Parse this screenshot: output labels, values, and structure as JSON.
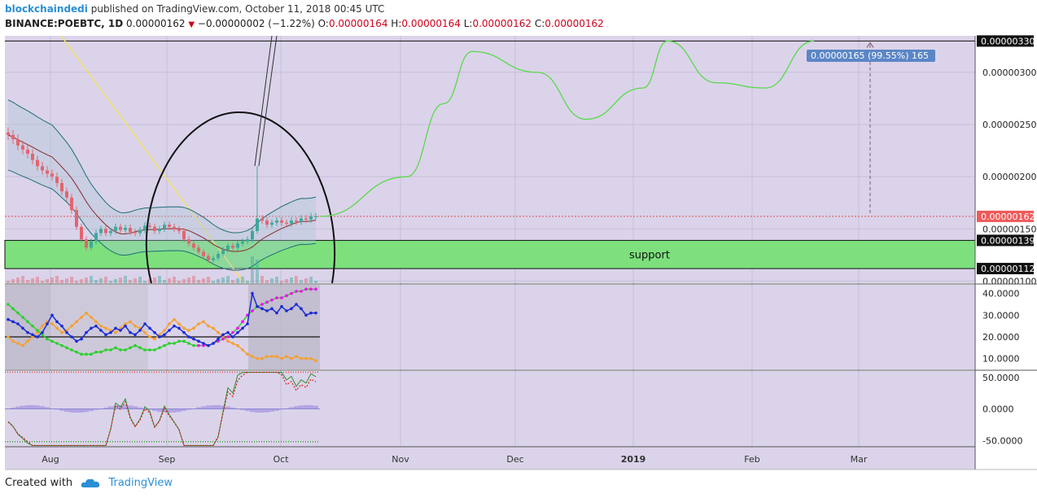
{
  "header": {
    "author": "blockchaindedi",
    "published_text": "published on TradingView.com, October 11, 2018 00:45 UTC",
    "symbol": "BINANCE:POEBTC, 1D",
    "last": "0.00000162",
    "change": "−0.00000002 (−1.22%)",
    "o_label": "O:",
    "o_value": "0.00000164",
    "h_label": "H:",
    "h_value": "0.00000164",
    "l_label": "L:",
    "l_value": "0.00000162",
    "c_label": "C:",
    "c_value": "0.00000162"
  },
  "footer": {
    "created_with": "Created with",
    "brand": "TradingView"
  },
  "colors": {
    "pane_bg": "#dbd3ea",
    "support_zone": "#7de07d",
    "candle_up": "#3fa89c",
    "candle_down": "#e3656e",
    "projection": "#59d94a",
    "circle": "#111111",
    "adx_line": "#1a2bd6",
    "plus_di": "#ff00ff",
    "minus_di": "#f5a030",
    "price_badge": "#f05a5a",
    "measure_badge": "#5b86c6"
  },
  "chart_data": {
    "type": "candlestick",
    "timeframe": "1D",
    "x_labels": [
      "Aug",
      "Sep",
      "Oct",
      "Nov",
      "Dec",
      "2019",
      "Feb",
      "Mar"
    ],
    "price_axis": {
      "ticks": [
        "0.00000300",
        "0.00000250",
        "0.00000200",
        "0.00000150",
        "0.00000100"
      ],
      "current_price": "0.00000162",
      "zone_top": "0.00000139",
      "zone_bottom": "0.00000112",
      "target": "0.00000330",
      "ylim": [
        9.8e-07,
        3.35e-06
      ]
    },
    "support_label": "support",
    "measure_label": "0.00000165 (99.55%) 165",
    "close_series": [
      2.4e-06,
      2.36e-06,
      2.3e-06,
      2.26e-06,
      2.22e-06,
      2.16e-06,
      2.1e-06,
      2.06e-06,
      2.03e-06,
      2e-06,
      1.94e-06,
      1.86e-06,
      1.8e-06,
      1.68e-06,
      1.52e-06,
      1.4e-06,
      1.32e-06,
      1.38e-06,
      1.46e-06,
      1.5e-06,
      1.46e-06,
      1.48e-06,
      1.52e-06,
      1.49e-06,
      1.51e-06,
      1.47e-06,
      1.46e-06,
      1.49e-06,
      1.53e-06,
      1.52e-06,
      1.48e-06,
      1.5e-06,
      1.54e-06,
      1.52e-06,
      1.5e-06,
      1.48e-06,
      1.4e-06,
      1.36e-06,
      1.32e-06,
      1.28e-06,
      1.24e-06,
      1.2e-06,
      1.22e-06,
      1.26e-06,
      1.3e-06,
      1.34e-06,
      1.32e-06,
      1.36e-06,
      1.38e-06,
      1.4e-06,
      1.48e-06,
      1.6e-06,
      1.58e-06,
      1.54e-06,
      1.56e-06,
      1.58e-06,
      1.56e-06,
      1.55e-06,
      1.58e-06,
      1.57e-06,
      1.6e-06,
      1.59e-06,
      1.62e-06,
      1.62e-06
    ],
    "projection_path": [
      [
        "Oct 10",
        1.62e-06
      ],
      [
        "Oct 30",
        2e-06
      ],
      [
        "Nov 15",
        2.7e-06
      ],
      [
        "Nov 20",
        3.2e-06
      ],
      [
        "Dec 1",
        3e-06
      ],
      [
        "Dec 20",
        2.55e-06
      ],
      [
        "Jan 5",
        2.85e-06
      ],
      [
        "Jan 10",
        3.3e-06
      ],
      [
        "Jan 25",
        2.9e-06
      ],
      [
        "Feb 5",
        2.85e-06
      ],
      [
        "Feb 20",
        3.3e-06
      ]
    ],
    "adx_pane": {
      "ticks": [
        "40.0000",
        "30.0000",
        "20.0000",
        "10.0000"
      ],
      "ylim": [
        5,
        44
      ],
      "adx": [
        28,
        27,
        26,
        24,
        22,
        21,
        20,
        22,
        26,
        30,
        27,
        25,
        22,
        20,
        18,
        19,
        22,
        24,
        25,
        23,
        21,
        22,
        24,
        23,
        25,
        22,
        21,
        23,
        26,
        24,
        22,
        20,
        21,
        23,
        25,
        24,
        22,
        20,
        19,
        18,
        17,
        16,
        17,
        19,
        21,
        22,
        20,
        22,
        24,
        26,
        40,
        34,
        33,
        32,
        33,
        31,
        34,
        32,
        33,
        35,
        33,
        30,
        31,
        31
      ],
      "plus_di": [
        35,
        33,
        31,
        29,
        27,
        25,
        23,
        21,
        19,
        18,
        17,
        16,
        15,
        14,
        13,
        12,
        12,
        12,
        13,
        13,
        14,
        14,
        15,
        14,
        14,
        15,
        16,
        15,
        14,
        14,
        14,
        15,
        16,
        17,
        17,
        18,
        18,
        17,
        16,
        16,
        16,
        16,
        17,
        18,
        19,
        20,
        22,
        24,
        27,
        30,
        32,
        34,
        35,
        36,
        37,
        38,
        38,
        39,
        40,
        41,
        41,
        42,
        42,
        42
      ],
      "minus_di": [
        20,
        18,
        17,
        16,
        18,
        20,
        22,
        25,
        27,
        26,
        24,
        22,
        23,
        25,
        27,
        29,
        31,
        29,
        27,
        25,
        24,
        23,
        22,
        24,
        26,
        27,
        25,
        24,
        22,
        20,
        19,
        21,
        23,
        26,
        28,
        26,
        24,
        23,
        24,
        26,
        27,
        25,
        24,
        22,
        20,
        18,
        17,
        16,
        14,
        12,
        11,
        10,
        10,
        11,
        11,
        11,
        10,
        11,
        10,
        11,
        10,
        10,
        10,
        9
      ],
      "level": 20
    },
    "osc_pane": {
      "ticks": [
        "50.0000",
        "0.0000",
        "-50.0000"
      ],
      "ylim": [
        -60,
        60
      ],
      "upper_level": 58,
      "lower_level": -52
    }
  }
}
